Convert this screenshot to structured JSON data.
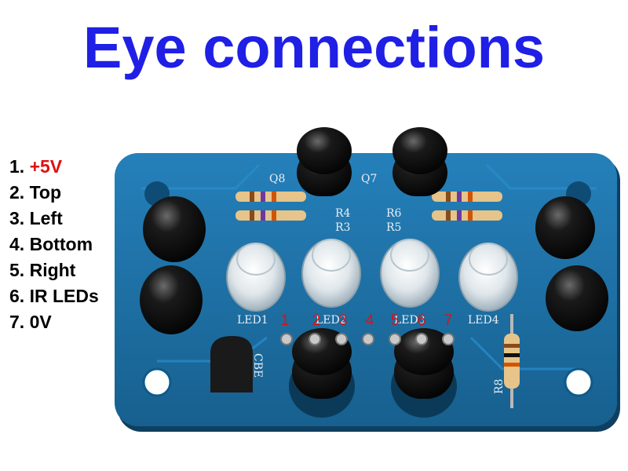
{
  "title": "Eye connections",
  "legend": [
    {
      "num": "1.",
      "label": "+5V",
      "color": "#e01010"
    },
    {
      "num": "2.",
      "label": "Top"
    },
    {
      "num": "3.",
      "label": "Left"
    },
    {
      "num": "4.",
      "label": "Bottom"
    },
    {
      "num": "5.",
      "label": "Right"
    },
    {
      "num": "6.",
      "label": "IR LEDs"
    },
    {
      "num": "7.",
      "label": "0V"
    }
  ],
  "pin_numbers": [
    "1",
    "2",
    "3",
    "4",
    "5",
    "6",
    "7"
  ],
  "silkscreen": {
    "q8": "Q8",
    "q7": "Q7",
    "r4": "R4",
    "r3": "R3",
    "r6": "R6",
    "r5": "R5",
    "led1": "LED1",
    "led2": "LED2",
    "led3": "LED3",
    "led4": "LED4",
    "r8": "R8",
    "cbe": "CBE"
  },
  "colors": {
    "title": "#1f1fe6",
    "board": "#1d6fa6",
    "pin_numbers": "#e01010"
  }
}
